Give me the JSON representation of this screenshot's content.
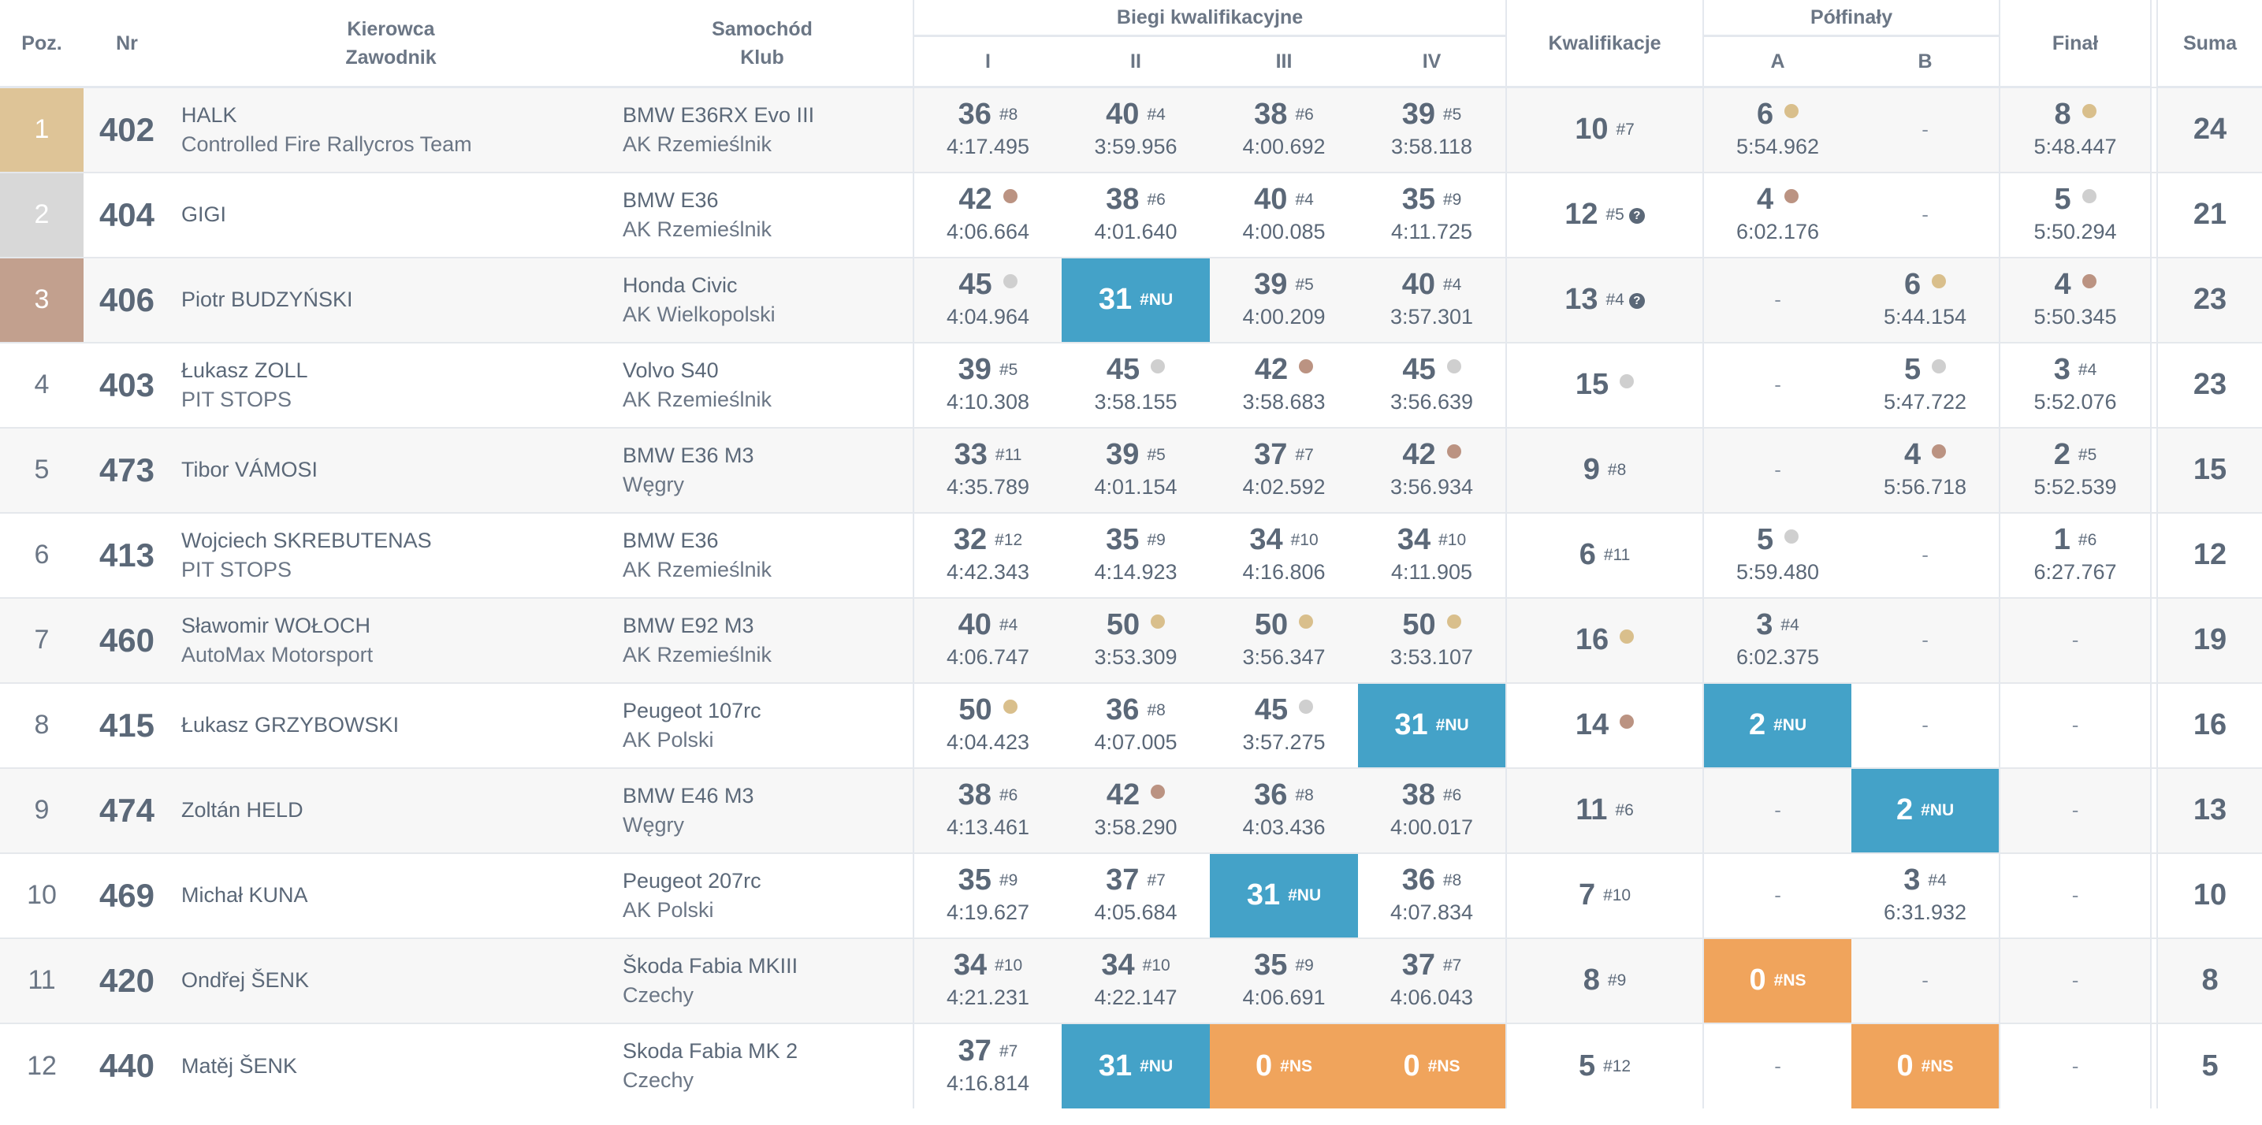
{
  "headers": {
    "poz": "Poz.",
    "nr": "Nr",
    "driver_1": "Kierowca",
    "driver_2": "Zawodnik",
    "car_1": "Samochód",
    "car_2": "Klub",
    "heats_group": "Biegi kwalifikacyjne",
    "heats": [
      "I",
      "II",
      "III",
      "IV"
    ],
    "kwalifikacje": "Kwalifikacje",
    "semi_group": "Półfinały",
    "semis": [
      "A",
      "B"
    ],
    "final": "Finał",
    "sum": "Suma"
  },
  "medal_colors": {
    "gold": "#dec497",
    "silver": "#d8d8d8",
    "bronze": "#c2a08e"
  },
  "status_colors": {
    "NU": "#44a2c8",
    "NS": "#f0a45c"
  },
  "rows": [
    {
      "pos": "1",
      "podium": "gold",
      "nr": "402",
      "driver": "HALK",
      "team": "Controlled Fire Rallycros Team",
      "car": "BMW E36RX Evo III",
      "club": "AK Rzemieślnik",
      "heats": [
        {
          "v": "36",
          "rank": "#8",
          "time": "4:17.495"
        },
        {
          "v": "40",
          "rank": "#4",
          "time": "3:59.956"
        },
        {
          "v": "38",
          "rank": "#6",
          "time": "4:00.692"
        },
        {
          "v": "39",
          "rank": "#5",
          "time": "3:58.118"
        }
      ],
      "q": {
        "v": "10",
        "rank": "#7"
      },
      "semiA": {
        "v": "6",
        "medal": "gold",
        "time": "5:54.962"
      },
      "semiB": {
        "dash": "-"
      },
      "final": {
        "v": "8",
        "medal": "gold",
        "time": "5:48.447"
      },
      "sum": "24"
    },
    {
      "pos": "2",
      "podium": "silver",
      "nr": "404",
      "driver": "GIGI",
      "team": "",
      "car": "BMW E36",
      "club": "AK Rzemieślnik",
      "heats": [
        {
          "v": "42",
          "medal": "bronze",
          "time": "4:06.664"
        },
        {
          "v": "38",
          "rank": "#6",
          "time": "4:01.640"
        },
        {
          "v": "40",
          "rank": "#4",
          "time": "4:00.085"
        },
        {
          "v": "35",
          "rank": "#9",
          "time": "4:11.725"
        }
      ],
      "q": {
        "v": "12",
        "rank": "#5",
        "info": "?"
      },
      "semiA": {
        "v": "4",
        "medal": "bronze",
        "time": "6:02.176"
      },
      "semiB": {
        "dash": "-"
      },
      "final": {
        "v": "5",
        "medal": "silver",
        "time": "5:50.294"
      },
      "sum": "21"
    },
    {
      "pos": "3",
      "podium": "bronze",
      "nr": "406",
      "driver": "Piotr BUDZYŃSKI",
      "team": "",
      "car": "Honda Civic",
      "club": "AK Wielkopolski",
      "heats": [
        {
          "v": "45",
          "medal": "silver",
          "time": "4:04.964"
        },
        {
          "v": "31",
          "status": "NU",
          "rank": "#NU"
        },
        {
          "v": "39",
          "rank": "#5",
          "time": "4:00.209"
        },
        {
          "v": "40",
          "rank": "#4",
          "time": "3:57.301"
        }
      ],
      "q": {
        "v": "13",
        "rank": "#4",
        "info": "?"
      },
      "semiA": {
        "dash": "-"
      },
      "semiB": {
        "v": "6",
        "medal": "gold",
        "time": "5:44.154"
      },
      "final": {
        "v": "4",
        "medal": "bronze",
        "time": "5:50.345"
      },
      "sum": "23"
    },
    {
      "pos": "4",
      "nr": "403",
      "driver": "Łukasz ZOLL",
      "team": "PIT STOPS",
      "car": "Volvo S40",
      "club": "AK Rzemieślnik",
      "heats": [
        {
          "v": "39",
          "rank": "#5",
          "time": "4:10.308"
        },
        {
          "v": "45",
          "medal": "silver",
          "time": "3:58.155"
        },
        {
          "v": "42",
          "medal": "bronze",
          "time": "3:58.683"
        },
        {
          "v": "45",
          "medal": "silver",
          "time": "3:56.639"
        }
      ],
      "q": {
        "v": "15",
        "medal": "silver"
      },
      "semiA": {
        "dash": "-"
      },
      "semiB": {
        "v": "5",
        "medal": "silver",
        "time": "5:47.722"
      },
      "final": {
        "v": "3",
        "rank": "#4",
        "time": "5:52.076"
      },
      "sum": "23"
    },
    {
      "pos": "5",
      "nr": "473",
      "driver": "Tibor VÁMOSI",
      "team": "",
      "car": "BMW E36 M3",
      "club": "Węgry",
      "heats": [
        {
          "v": "33",
          "rank": "#11",
          "time": "4:35.789"
        },
        {
          "v": "39",
          "rank": "#5",
          "time": "4:01.154"
        },
        {
          "v": "37",
          "rank": "#7",
          "time": "4:02.592"
        },
        {
          "v": "42",
          "medal": "bronze",
          "time": "3:56.934"
        }
      ],
      "q": {
        "v": "9",
        "rank": "#8"
      },
      "semiA": {
        "dash": "-"
      },
      "semiB": {
        "v": "4",
        "medal": "bronze",
        "time": "5:56.718"
      },
      "final": {
        "v": "2",
        "rank": "#5",
        "time": "5:52.539"
      },
      "sum": "15"
    },
    {
      "pos": "6",
      "nr": "413",
      "driver": "Wojciech SKREBUTENAS",
      "team": "PIT STOPS",
      "car": "BMW E36",
      "club": "AK Rzemieślnik",
      "heats": [
        {
          "v": "32",
          "rank": "#12",
          "time": "4:42.343"
        },
        {
          "v": "35",
          "rank": "#9",
          "time": "4:14.923"
        },
        {
          "v": "34",
          "rank": "#10",
          "time": "4:16.806"
        },
        {
          "v": "34",
          "rank": "#10",
          "time": "4:11.905"
        }
      ],
      "q": {
        "v": "6",
        "rank": "#11"
      },
      "semiA": {
        "v": "5",
        "medal": "silver",
        "time": "5:59.480"
      },
      "semiB": {
        "dash": "-"
      },
      "final": {
        "v": "1",
        "rank": "#6",
        "time": "6:27.767"
      },
      "sum": "12"
    },
    {
      "pos": "7",
      "nr": "460",
      "driver": "Sławomir WOŁOCH",
      "team": "AutoMax Motorsport",
      "car": "BMW E92 M3",
      "club": "AK Rzemieślnik",
      "heats": [
        {
          "v": "40",
          "rank": "#4",
          "time": "4:06.747"
        },
        {
          "v": "50",
          "medal": "gold",
          "time": "3:53.309"
        },
        {
          "v": "50",
          "medal": "gold",
          "time": "3:56.347"
        },
        {
          "v": "50",
          "medal": "gold",
          "time": "3:53.107"
        }
      ],
      "q": {
        "v": "16",
        "medal": "gold"
      },
      "semiA": {
        "v": "3",
        "rank": "#4",
        "time": "6:02.375"
      },
      "semiB": {
        "dash": "-"
      },
      "final": {
        "dash": "-"
      },
      "sum": "19"
    },
    {
      "pos": "8",
      "nr": "415",
      "driver": "Łukasz GRZYBOWSKI",
      "team": "",
      "car": "Peugeot 107rc",
      "club": "AK Polski",
      "heats": [
        {
          "v": "50",
          "medal": "gold",
          "time": "4:04.423"
        },
        {
          "v": "36",
          "rank": "#8",
          "time": "4:07.005"
        },
        {
          "v": "45",
          "medal": "silver",
          "time": "3:57.275"
        },
        {
          "v": "31",
          "status": "NU",
          "rank": "#NU"
        }
      ],
      "q": {
        "v": "14",
        "medal": "bronze"
      },
      "semiA": {
        "v": "2",
        "status": "NU",
        "rank": "#NU"
      },
      "semiB": {
        "dash": "-"
      },
      "final": {
        "dash": "-"
      },
      "sum": "16"
    },
    {
      "pos": "9",
      "nr": "474",
      "driver": "Zoltán HELD",
      "team": "",
      "car": "BMW E46 M3",
      "club": "Węgry",
      "heats": [
        {
          "v": "38",
          "rank": "#6",
          "time": "4:13.461"
        },
        {
          "v": "42",
          "medal": "bronze",
          "time": "3:58.290"
        },
        {
          "v": "36",
          "rank": "#8",
          "time": "4:03.436"
        },
        {
          "v": "38",
          "rank": "#6",
          "time": "4:00.017"
        }
      ],
      "q": {
        "v": "11",
        "rank": "#6"
      },
      "semiA": {
        "dash": "-"
      },
      "semiB": {
        "v": "2",
        "status": "NU",
        "rank": "#NU"
      },
      "final": {
        "dash": "-"
      },
      "sum": "13"
    },
    {
      "pos": "10",
      "nr": "469",
      "driver": "Michał KUNA",
      "team": "",
      "car": "Peugeot 207rc",
      "club": "AK Polski",
      "heats": [
        {
          "v": "35",
          "rank": "#9",
          "time": "4:19.627"
        },
        {
          "v": "37",
          "rank": "#7",
          "time": "4:05.684"
        },
        {
          "v": "31",
          "status": "NU",
          "rank": "#NU"
        },
        {
          "v": "36",
          "rank": "#8",
          "time": "4:07.834"
        }
      ],
      "q": {
        "v": "7",
        "rank": "#10"
      },
      "semiA": {
        "dash": "-"
      },
      "semiB": {
        "v": "3",
        "rank": "#4",
        "time": "6:31.932"
      },
      "final": {
        "dash": "-"
      },
      "sum": "10"
    },
    {
      "pos": "11",
      "nr": "420",
      "driver": "Ondřej ŠENK",
      "team": "",
      "car": "Škoda Fabia MKIII",
      "club": "Czechy",
      "heats": [
        {
          "v": "34",
          "rank": "#10",
          "time": "4:21.231"
        },
        {
          "v": "34",
          "rank": "#10",
          "time": "4:22.147"
        },
        {
          "v": "35",
          "rank": "#9",
          "time": "4:06.691"
        },
        {
          "v": "37",
          "rank": "#7",
          "time": "4:06.043"
        }
      ],
      "q": {
        "v": "8",
        "rank": "#9"
      },
      "semiA": {
        "v": "0",
        "status": "NS",
        "rank": "#NS"
      },
      "semiB": {
        "dash": "-"
      },
      "final": {
        "dash": "-"
      },
      "sum": "8"
    },
    {
      "pos": "12",
      "nr": "440",
      "driver": "Matěj ŠENK",
      "team": "",
      "car": "Skoda Fabia MK 2",
      "club": "Czechy",
      "heats": [
        {
          "v": "37",
          "rank": "#7",
          "time": "4:16.814"
        },
        {
          "v": "31",
          "status": "NU",
          "rank": "#NU"
        },
        {
          "v": "0",
          "status": "NS",
          "rank": "#NS"
        },
        {
          "v": "0",
          "status": "NS",
          "rank": "#NS"
        }
      ],
      "q": {
        "v": "5",
        "rank": "#12"
      },
      "semiA": {
        "dash": "-"
      },
      "semiB": {
        "v": "0",
        "status": "NS",
        "rank": "#NS"
      },
      "final": {
        "dash": "-"
      },
      "sum": "5"
    }
  ]
}
